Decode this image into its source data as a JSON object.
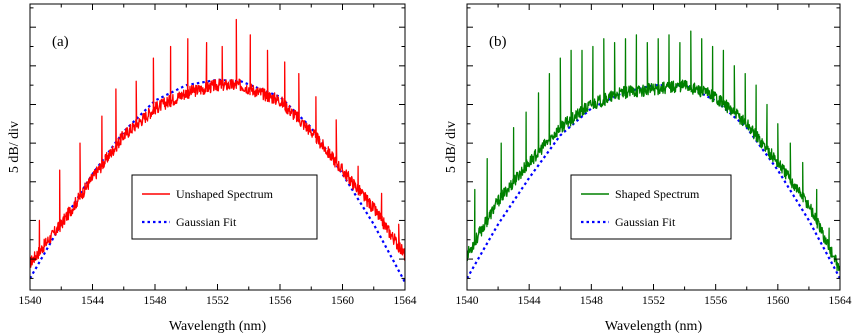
{
  "chart_data": [
    {
      "type": "line",
      "panel_label": "(a)",
      "xlabel": "Wavelength (nm)",
      "ylabel": "5 dB/ div",
      "xlim": [
        1540,
        1564
      ],
      "x_ticks": [
        "1540",
        "1544",
        "1548",
        "1552",
        "1556",
        "1560",
        "1564"
      ],
      "y_unit": "dB (relative)",
      "ylim": [
        -34,
        3
      ],
      "legend_position": "center-right",
      "colors": {
        "measured": "#ff0000",
        "fit": "#0000ff"
      },
      "series": [
        {
          "name": "Unshaped Spectrum",
          "style": "solid",
          "baseline": {
            "x": [
              1540,
              1542,
              1544,
              1546,
              1548,
              1550,
              1552,
              1553.5,
              1556,
              1558,
              1560,
              1562,
              1564
            ],
            "y": [
              -30.5,
              -25.5,
              -19.5,
              -14,
              -10.5,
              -8.5,
              -7.5,
              -7.5,
              -9.5,
              -13.5,
              -18.5,
              -23.5,
              -29.5
            ]
          },
          "spikes": [
            {
              "x": 1540.6,
              "y": -25
            },
            {
              "x": 1541.9,
              "y": -18.5
            },
            {
              "x": 1543.2,
              "y": -15
            },
            {
              "x": 1544.6,
              "y": -11.5
            },
            {
              "x": 1545.5,
              "y": -8
            },
            {
              "x": 1546.8,
              "y": -7
            },
            {
              "x": 1547.9,
              "y": -4
            },
            {
              "x": 1549.0,
              "y": -2.5
            },
            {
              "x": 1550.1,
              "y": -1.5
            },
            {
              "x": 1551.3,
              "y": -2
            },
            {
              "x": 1552.3,
              "y": -2.5
            },
            {
              "x": 1553.2,
              "y": 1
            },
            {
              "x": 1554.1,
              "y": -1
            },
            {
              "x": 1555.2,
              "y": -3
            },
            {
              "x": 1556.3,
              "y": -4.5
            },
            {
              "x": 1557.2,
              "y": -6
            },
            {
              "x": 1558.3,
              "y": -9
            },
            {
              "x": 1559.6,
              "y": -12
            },
            {
              "x": 1561.0,
              "y": -18
            },
            {
              "x": 1562.5,
              "y": -21.5
            },
            {
              "x": 1563.6,
              "y": -25.5
            }
          ]
        },
        {
          "name": "Gaussian Fit",
          "style": "dotted",
          "x": [
            1540,
            1542,
            1544,
            1546,
            1548,
            1550,
            1552,
            1553.5,
            1556,
            1558,
            1560,
            1562,
            1564
          ],
          "y": [
            -32.5,
            -25.5,
            -19,
            -13.5,
            -9.5,
            -7.5,
            -6.8,
            -7,
            -9,
            -13,
            -19,
            -25.5,
            -33
          ]
        }
      ]
    },
    {
      "type": "line",
      "panel_label": "(b)",
      "xlabel": "Wavelength (nm)",
      "ylabel": "5 dB/ div",
      "xlim": [
        1540,
        1564
      ],
      "x_ticks": [
        "1540",
        "1544",
        "1548",
        "1552",
        "1556",
        "1560",
        "1564"
      ],
      "y_unit": "dB (relative)",
      "ylim": [
        -34,
        3
      ],
      "legend_position": "center-right",
      "colors": {
        "measured": "#008000",
        "fit": "#0000ff"
      },
      "series": [
        {
          "name": "Shaped Spectrum",
          "style": "solid",
          "baseline": {
            "x": [
              1540,
              1542,
              1544,
              1546,
              1548,
              1550,
              1552,
              1554,
              1556,
              1558,
              1560,
              1562,
              1564
            ],
            "y": [
              -29.5,
              -22.5,
              -17.5,
              -13,
              -10,
              -8.5,
              -8,
              -7.5,
              -9,
              -12.5,
              -17.5,
              -23,
              -31.5
            ]
          },
          "spikes": [
            {
              "x": 1540.5,
              "y": -21
            },
            {
              "x": 1541.3,
              "y": -17
            },
            {
              "x": 1542.2,
              "y": -15
            },
            {
              "x": 1543.0,
              "y": -13
            },
            {
              "x": 1543.8,
              "y": -11
            },
            {
              "x": 1544.6,
              "y": -8.5
            },
            {
              "x": 1545.3,
              "y": -6
            },
            {
              "x": 1546.0,
              "y": -4
            },
            {
              "x": 1546.7,
              "y": -3
            },
            {
              "x": 1547.4,
              "y": -3
            },
            {
              "x": 1548.1,
              "y": -2.5
            },
            {
              "x": 1548.8,
              "y": -1.5
            },
            {
              "x": 1549.5,
              "y": -2
            },
            {
              "x": 1550.2,
              "y": -1.5
            },
            {
              "x": 1550.9,
              "y": -1
            },
            {
              "x": 1551.6,
              "y": -2
            },
            {
              "x": 1552.3,
              "y": -1.5
            },
            {
              "x": 1553.0,
              "y": -1
            },
            {
              "x": 1553.7,
              "y": -2
            },
            {
              "x": 1554.4,
              "y": -0.5
            },
            {
              "x": 1555.1,
              "y": -1.5
            },
            {
              "x": 1555.8,
              "y": -2.5
            },
            {
              "x": 1556.5,
              "y": -3
            },
            {
              "x": 1557.2,
              "y": -5
            },
            {
              "x": 1557.9,
              "y": -6
            },
            {
              "x": 1558.6,
              "y": -7.5
            },
            {
              "x": 1559.3,
              "y": -10
            },
            {
              "x": 1560.0,
              "y": -12.5
            },
            {
              "x": 1560.8,
              "y": -15
            },
            {
              "x": 1561.6,
              "y": -17.5
            },
            {
              "x": 1562.5,
              "y": -21
            },
            {
              "x": 1563.3,
              "y": -26
            }
          ]
        },
        {
          "name": "Gaussian Fit",
          "style": "dotted",
          "x": [
            1540,
            1542,
            1544,
            1546,
            1548,
            1550,
            1552,
            1554,
            1556,
            1558,
            1560,
            1562,
            1564
          ],
          "y": [
            -32.5,
            -25.5,
            -19.5,
            -14,
            -10.5,
            -8.5,
            -7.5,
            -7.5,
            -9.5,
            -13,
            -18.5,
            -25,
            -32.5
          ]
        }
      ]
    }
  ]
}
